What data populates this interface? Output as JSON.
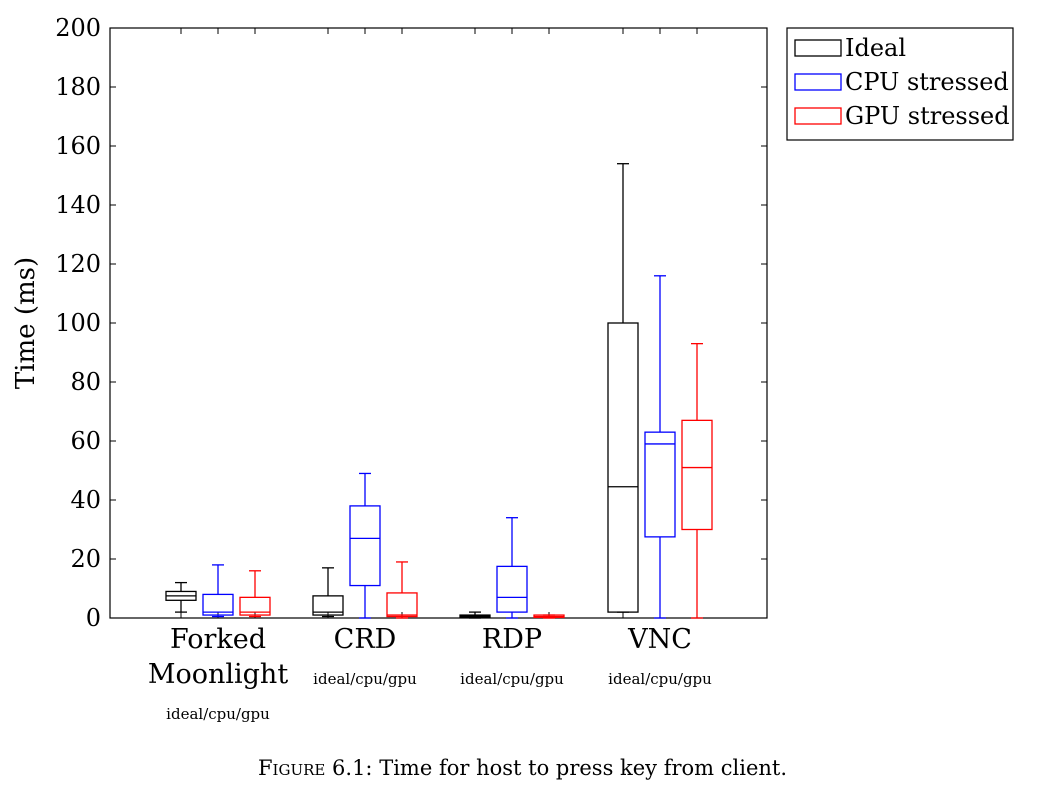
{
  "chart_data": {
    "type": "box",
    "ylabel": "Time (ms)",
    "ylim": [
      0,
      200
    ],
    "yticks": [
      0,
      20,
      40,
      60,
      80,
      100,
      120,
      140,
      160,
      180,
      200
    ],
    "grid": false,
    "legend_position": "outside-top-right",
    "categories": [
      {
        "label_lines": [
          "Forked",
          "Moonlight"
        ],
        "sublabel": "ideal/cpu/gpu"
      },
      {
        "label_lines": [
          "CRD"
        ],
        "sublabel": "ideal/cpu/gpu"
      },
      {
        "label_lines": [
          "RDP"
        ],
        "sublabel": "ideal/cpu/gpu"
      },
      {
        "label_lines": [
          "VNC"
        ],
        "sublabel": "ideal/cpu/gpu"
      }
    ],
    "series": [
      {
        "name": "Ideal",
        "color": "#000000",
        "boxes": [
          {
            "min": 2,
            "q1": 6,
            "median": 7.5,
            "q3": 9,
            "max": 12
          },
          {
            "min": 0.5,
            "q1": 1,
            "median": 2,
            "q3": 7.5,
            "max": 17
          },
          {
            "min": 0,
            "q1": 0.3,
            "median": 0.7,
            "q3": 1,
            "max": 2
          },
          {
            "min": 2,
            "q1": 2,
            "median": 44.5,
            "q3": 100,
            "max": 154
          }
        ]
      },
      {
        "name": "CPU stressed",
        "color": "#0000ff",
        "boxes": [
          {
            "min": 0.5,
            "q1": 1,
            "median": 2,
            "q3": 8,
            "max": 18
          },
          {
            "min": 0,
            "q1": 11,
            "median": 27,
            "q3": 38,
            "max": 49
          },
          {
            "min": 0,
            "q1": 2,
            "median": 7,
            "q3": 17.5,
            "max": 34
          },
          {
            "min": 0,
            "q1": 27.5,
            "median": 59,
            "q3": 63,
            "max": 116
          }
        ]
      },
      {
        "name": "GPU stressed",
        "color": "#ff0000",
        "boxes": [
          {
            "min": 0.5,
            "q1": 1,
            "median": 2,
            "q3": 7,
            "max": 16
          },
          {
            "min": 0,
            "q1": 0.5,
            "median": 1,
            "q3": 8.5,
            "max": 19
          },
          {
            "min": 0,
            "q1": 0.2,
            "median": 0.5,
            "q3": 1,
            "max": 1
          },
          {
            "min": 0,
            "q1": 30,
            "median": 51,
            "q3": 67,
            "max": 93
          }
        ]
      }
    ]
  },
  "caption": {
    "label": "Figure",
    "number": "6.1:",
    "text": "Time for host to press key from client."
  }
}
